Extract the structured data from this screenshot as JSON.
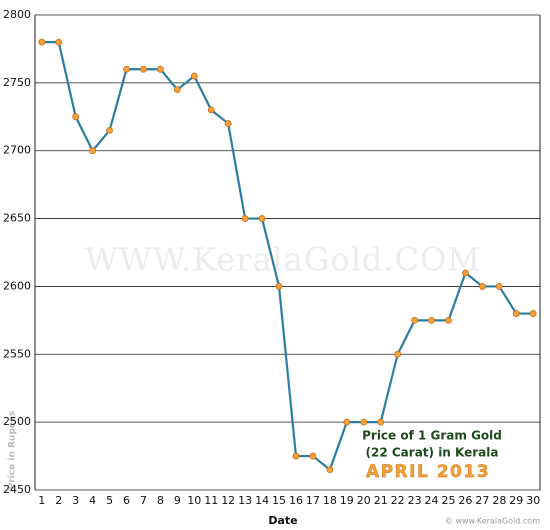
{
  "chart_data": {
    "type": "line",
    "title_lines": [
      "Price of 1 Gram Gold",
      "(22 Carat) in Kerala"
    ],
    "subtitle": "APRIL 2013",
    "watermark": "WWW.KeralaGold.COM",
    "credit": "© www.KeralaGold.com",
    "x_label": "Date",
    "y_label": "Price in Rupees",
    "x": [
      1,
      2,
      3,
      4,
      5,
      6,
      7,
      8,
      9,
      10,
      11,
      12,
      13,
      14,
      15,
      16,
      17,
      18,
      19,
      20,
      21,
      22,
      23,
      24,
      25,
      26,
      27,
      28,
      29,
      30
    ],
    "xlim": [
      0.6,
      30.4
    ],
    "series": [
      {
        "name": "Price",
        "color": "#2b7ea1",
        "marker_color": "#f7a13a",
        "values": [
          2780,
          2780,
          2725,
          2700,
          2715,
          2760,
          2760,
          2760,
          2745,
          2755,
          2730,
          2720,
          2650,
          2650,
          2600,
          2475,
          2475,
          2465,
          2500,
          2500,
          2500,
          2550,
          2575,
          2575,
          2575,
          2610,
          2600,
          2600,
          2580,
          2580
        ]
      }
    ],
    "ylim": [
      2450,
      2800
    ],
    "yticks": [
      2450,
      2500,
      2550,
      2600,
      2650,
      2700,
      2750,
      2800
    ],
    "grid": true
  }
}
